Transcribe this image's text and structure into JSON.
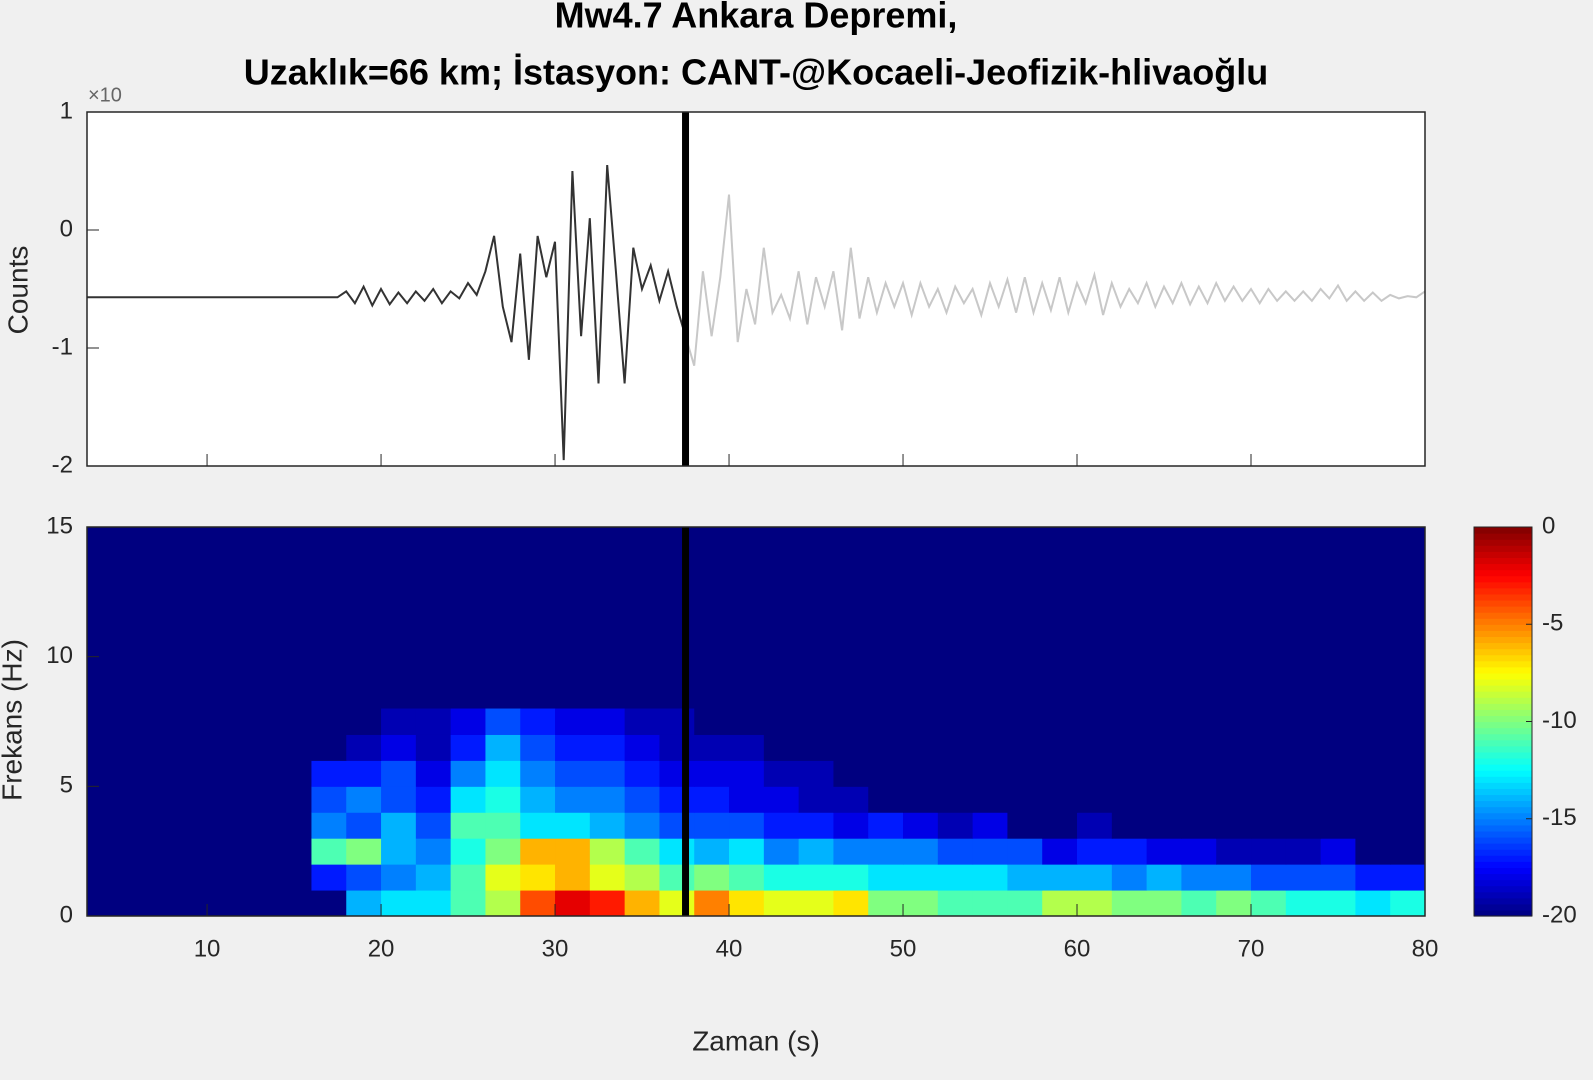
{
  "chart_data": [
    {
      "type": "line",
      "title": [
        "Mw4.7 Ankara Depremi,",
        "Uzaklık=66 km; İstasyon: CANT-@Kocaeli-Jeofizik-hlivaoğlu"
      ],
      "ylabel": "Counts",
      "y_exponent_label": "×10",
      "xlim": [
        3.1,
        80
      ],
      "xticks": [
        10,
        20,
        30,
        40,
        50,
        60,
        70,
        80
      ],
      "ylim": [
        -2,
        1
      ],
      "yticks": [
        -2,
        -1,
        0,
        1
      ],
      "cursor_x": 37.5,
      "series": [
        {
          "color": "#333333",
          "x": [
            3.1,
            17.5,
            18,
            18.5,
            19,
            19.5,
            20,
            20.5,
            21,
            21.5,
            22,
            22.5,
            23,
            23.5,
            24,
            24.5,
            25,
            25.5,
            26,
            26.5,
            27,
            27.5,
            28,
            28.5,
            29,
            29.5,
            30,
            30.5,
            31,
            31.5,
            32,
            32.5,
            33,
            33.5,
            34,
            34.5,
            35,
            35.5,
            36,
            36.5,
            37,
            37.5
          ],
          "values": [
            -0.57,
            -0.57,
            -0.52,
            -0.62,
            -0.48,
            -0.64,
            -0.5,
            -0.63,
            -0.53,
            -0.62,
            -0.52,
            -0.6,
            -0.5,
            -0.62,
            -0.52,
            -0.58,
            -0.45,
            -0.55,
            -0.35,
            -0.05,
            -0.65,
            -0.95,
            -0.2,
            -1.1,
            -0.05,
            -0.4,
            -0.1,
            -1.95,
            0.5,
            -0.9,
            0.1,
            -1.3,
            0.55,
            -0.35,
            -1.3,
            -0.15,
            -0.5,
            -0.3,
            -0.6,
            -0.35,
            -0.65,
            -0.9
          ]
        },
        {
          "color": "#c8c8c8",
          "x": [
            37.5,
            38,
            38.5,
            39,
            39.5,
            40,
            40.5,
            41,
            41.5,
            42,
            42.5,
            43,
            43.5,
            44,
            44.5,
            45,
            45.5,
            46,
            46.5,
            47,
            47.5,
            48,
            48.5,
            49,
            49.5,
            50,
            50.5,
            51,
            51.5,
            52,
            52.5,
            53,
            53.5,
            54,
            54.5,
            55,
            55.5,
            56,
            56.5,
            57,
            57.5,
            58,
            58.5,
            59,
            59.5,
            60,
            60.5,
            61,
            61.5,
            62,
            62.5,
            63,
            63.5,
            64,
            64.5,
            65,
            65.5,
            66,
            66.5,
            67,
            67.5,
            68,
            68.5,
            69,
            69.5,
            70,
            70.5,
            71,
            71.5,
            72,
            72.5,
            73,
            73.5,
            74,
            74.5,
            75,
            75.5,
            76,
            76.5,
            77,
            77.5,
            78,
            78.5,
            79,
            79.5,
            80
          ],
          "values": [
            -0.9,
            -1.15,
            -0.35,
            -0.9,
            -0.4,
            0.3,
            -0.95,
            -0.5,
            -0.8,
            -0.15,
            -0.7,
            -0.55,
            -0.75,
            -0.35,
            -0.8,
            -0.4,
            -0.65,
            -0.35,
            -0.85,
            -0.15,
            -0.75,
            -0.4,
            -0.7,
            -0.45,
            -0.65,
            -0.45,
            -0.72,
            -0.45,
            -0.65,
            -0.5,
            -0.7,
            -0.48,
            -0.62,
            -0.5,
            -0.72,
            -0.45,
            -0.65,
            -0.42,
            -0.7,
            -0.4,
            -0.7,
            -0.45,
            -0.68,
            -0.4,
            -0.7,
            -0.45,
            -0.62,
            -0.38,
            -0.72,
            -0.45,
            -0.65,
            -0.5,
            -0.62,
            -0.45,
            -0.65,
            -0.48,
            -0.62,
            -0.45,
            -0.63,
            -0.48,
            -0.62,
            -0.45,
            -0.6,
            -0.48,
            -0.6,
            -0.5,
            -0.62,
            -0.5,
            -0.6,
            -0.52,
            -0.6,
            -0.52,
            -0.6,
            -0.5,
            -0.58,
            -0.47,
            -0.6,
            -0.52,
            -0.6,
            -0.53,
            -0.6,
            -0.55,
            -0.58,
            -0.56,
            -0.57,
            -0.52
          ]
        }
      ]
    },
    {
      "type": "heatmap",
      "xlabel": "Zaman (s)",
      "ylabel": "Frekans (Hz)",
      "xlim": [
        3.1,
        80
      ],
      "xticks": [
        10,
        20,
        30,
        40,
        50,
        60,
        70,
        80
      ],
      "ylim": [
        0,
        15
      ],
      "yticks": [
        0,
        5,
        10,
        15
      ],
      "cursor_x": 37.5,
      "colormap": "jet",
      "zlim": [
        -20,
        0
      ],
      "zticks": [
        0,
        -5,
        -10,
        -15,
        -20
      ],
      "x_edges": [
        16,
        18,
        20,
        22,
        24,
        26,
        28,
        30,
        32,
        34,
        36,
        38,
        40,
        42,
        44,
        46,
        48,
        50,
        52,
        54,
        56,
        58,
        60,
        62,
        64,
        66,
        68,
        70,
        72,
        74,
        76,
        78,
        80
      ],
      "y_edges": [
        0,
        1,
        2,
        3,
        4,
        5,
        6,
        7,
        8
      ],
      "z": [
        [
          -20,
          -14,
          -13,
          -13,
          -11,
          -9,
          -4,
          -2,
          -3,
          -6,
          -8,
          -5,
          -7,
          -8,
          -8,
          -7,
          -10,
          -10,
          -11,
          -11,
          -11,
          -9,
          -9,
          -10,
          -10,
          -11,
          -10,
          -11,
          -12,
          -12,
          -13,
          -12
        ],
        [
          -17,
          -16,
          -15,
          -14,
          -11,
          -8,
          -7,
          -6,
          -8,
          -9,
          -11,
          -10,
          -11,
          -12,
          -12,
          -12,
          -13,
          -13,
          -13,
          -13,
          -14,
          -14,
          -14,
          -15,
          -14,
          -15,
          -15,
          -16,
          -16,
          -16,
          -17,
          -17
        ],
        [
          -11,
          -10,
          -14,
          -15,
          -12,
          -10,
          -6,
          -6,
          -9,
          -11,
          -13,
          -14,
          -13,
          -15,
          -14,
          -15,
          -15,
          -15,
          -16,
          -16,
          -16,
          -18,
          -17,
          -17,
          -18,
          -18,
          -19,
          -19,
          -19,
          -18,
          -20,
          -20
        ],
        [
          -15,
          -16,
          -14,
          -16,
          -11,
          -11,
          -13,
          -13,
          -14,
          -15,
          -16,
          -16,
          -16,
          -17,
          -17,
          -18,
          -17,
          -18,
          -19,
          -18,
          -20,
          -20,
          -19,
          -20,
          -20,
          -20,
          -20,
          -20,
          -20,
          -20,
          -20,
          -20
        ],
        [
          -16,
          -15,
          -16,
          -17,
          -13,
          -12,
          -14,
          -15,
          -15,
          -16,
          -17,
          -17,
          -18,
          -18,
          -19,
          -19,
          -20,
          -20,
          -20,
          -20,
          -20,
          -20,
          -20,
          -20,
          -20,
          -20,
          -20,
          -20,
          -20,
          -20,
          -20,
          -20
        ],
        [
          -17,
          -17,
          -16,
          -18,
          -15,
          -13,
          -15,
          -16,
          -16,
          -17,
          -18,
          -18,
          -18,
          -19,
          -19,
          -20,
          -20,
          -20,
          -20,
          -20,
          -20,
          -20,
          -20,
          -20,
          -20,
          -20,
          -20,
          -20,
          -20,
          -20,
          -20,
          -20
        ],
        [
          -20,
          -19,
          -18,
          -19,
          -17,
          -14,
          -16,
          -17,
          -17,
          -18,
          -19,
          -19,
          -19,
          -20,
          -20,
          -20,
          -20,
          -20,
          -20,
          -20,
          -20,
          -20,
          -20,
          -20,
          -20,
          -20,
          -20,
          -20,
          -20,
          -20,
          -20,
          -20
        ],
        [
          -20,
          -20,
          -19,
          -19,
          -18,
          -16,
          -17,
          -18,
          -18,
          -19,
          -19,
          -20,
          -20,
          -20,
          -20,
          -20,
          -20,
          -20,
          -20,
          -20,
          -20,
          -20,
          -20,
          -20,
          -20,
          -20,
          -20,
          -20,
          -20,
          -20,
          -20,
          -20
        ]
      ]
    }
  ]
}
